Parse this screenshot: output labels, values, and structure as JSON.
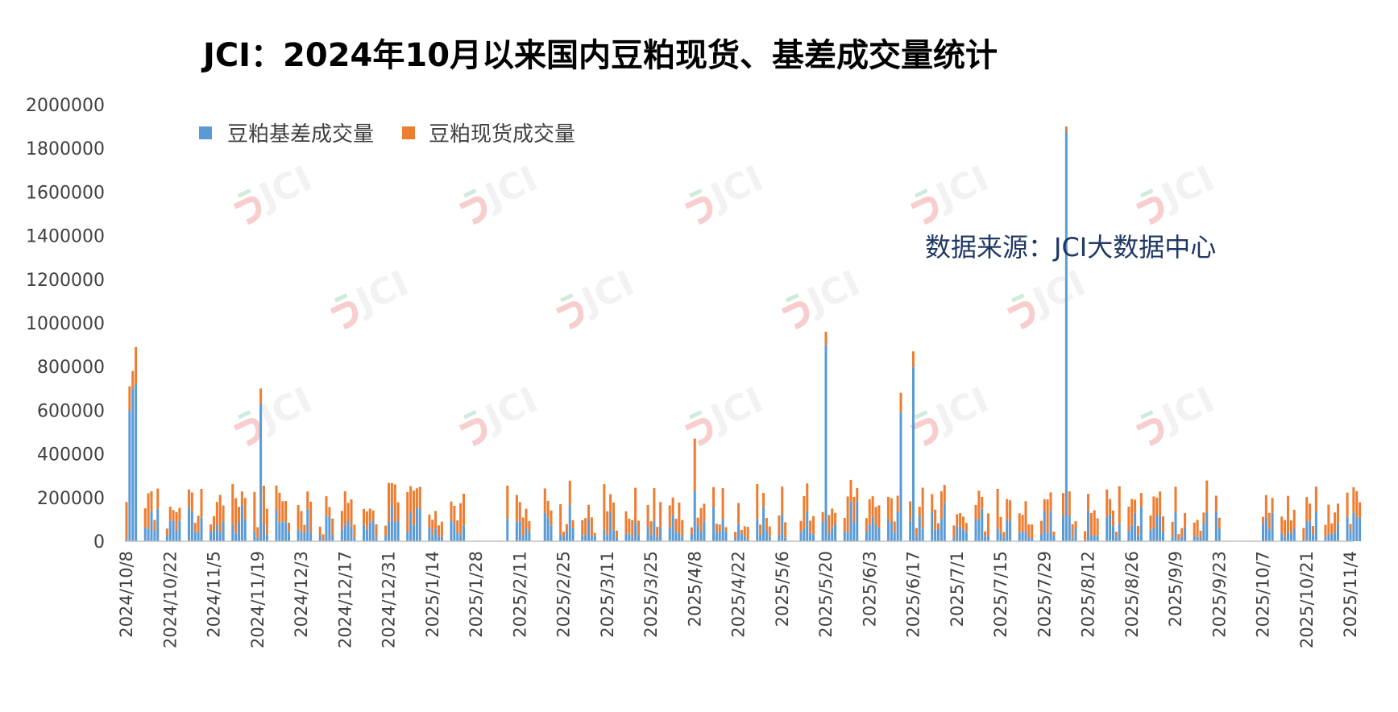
{
  "chart_data": {
    "type": "bar",
    "stacked": true,
    "title": "JCI：2024年10月以来国内豆粕现货、基差成交量统计",
    "source_note": "数据来源：JCI大数据中心",
    "watermark": "JCI",
    "legend_position": "top-left",
    "ylim": [
      0,
      2000000
    ],
    "yticks": [
      "0",
      "200000",
      "400000",
      "600000",
      "800000",
      "1000000",
      "1200000",
      "1400000",
      "1600000",
      "1800000",
      "2000000"
    ],
    "xtick_labels": [
      "2024/10/8",
      "2024/10/22",
      "2024/11/5",
      "2024/11/19",
      "2024/12/3",
      "2024/12/17",
      "2024/12/31",
      "2025/1/14",
      "2025/1/28",
      "2025/2/11",
      "2025/2/25",
      "2025/3/11",
      "2025/3/25",
      "2025/4/8",
      "2025/4/22",
      "2025/5/6",
      "2025/5/20",
      "2025/6/3",
      "2025/6/17",
      "2025/7/1",
      "2025/7/15",
      "2025/7/29",
      "2025/8/12",
      "2025/8/26",
      "2025/9/9",
      "2025/9/23",
      "2025/10/7",
      "2025/10/21",
      "2025/11/4"
    ],
    "colors": {
      "basis": "#5b9bd5",
      "spot": "#ed7d31"
    },
    "series": [
      {
        "name": "豆粕基差成交量",
        "key": "basis"
      },
      {
        "name": "豆粕现货成交量",
        "key": "spot"
      }
    ],
    "sample_total_values": [
      {
        "date": "2024/10/8",
        "basis": 10000,
        "spot": 170000
      },
      {
        "date": "2024/10/9",
        "basis": 600000,
        "spot": 110000
      },
      {
        "date": "2024/10/10",
        "basis": 700000,
        "spot": 80000
      },
      {
        "date": "2024/10/11",
        "basis": 720000,
        "spot": 170000
      },
      {
        "date": "2024/11/20",
        "basis": 630000,
        "spot": 70000
      },
      {
        "date": "2025/4/8",
        "basis": 230000,
        "spot": 240000
      },
      {
        "date": "2025/5/20",
        "basis": 900000,
        "spot": 60000
      },
      {
        "date": "2025/6/17",
        "basis": 800000,
        "spot": 70000
      },
      {
        "date": "2025/6/13",
        "basis": 590000,
        "spot": 90000
      },
      {
        "date": "2025/8/5",
        "basis": 1880000,
        "spot": 20000
      }
    ]
  }
}
